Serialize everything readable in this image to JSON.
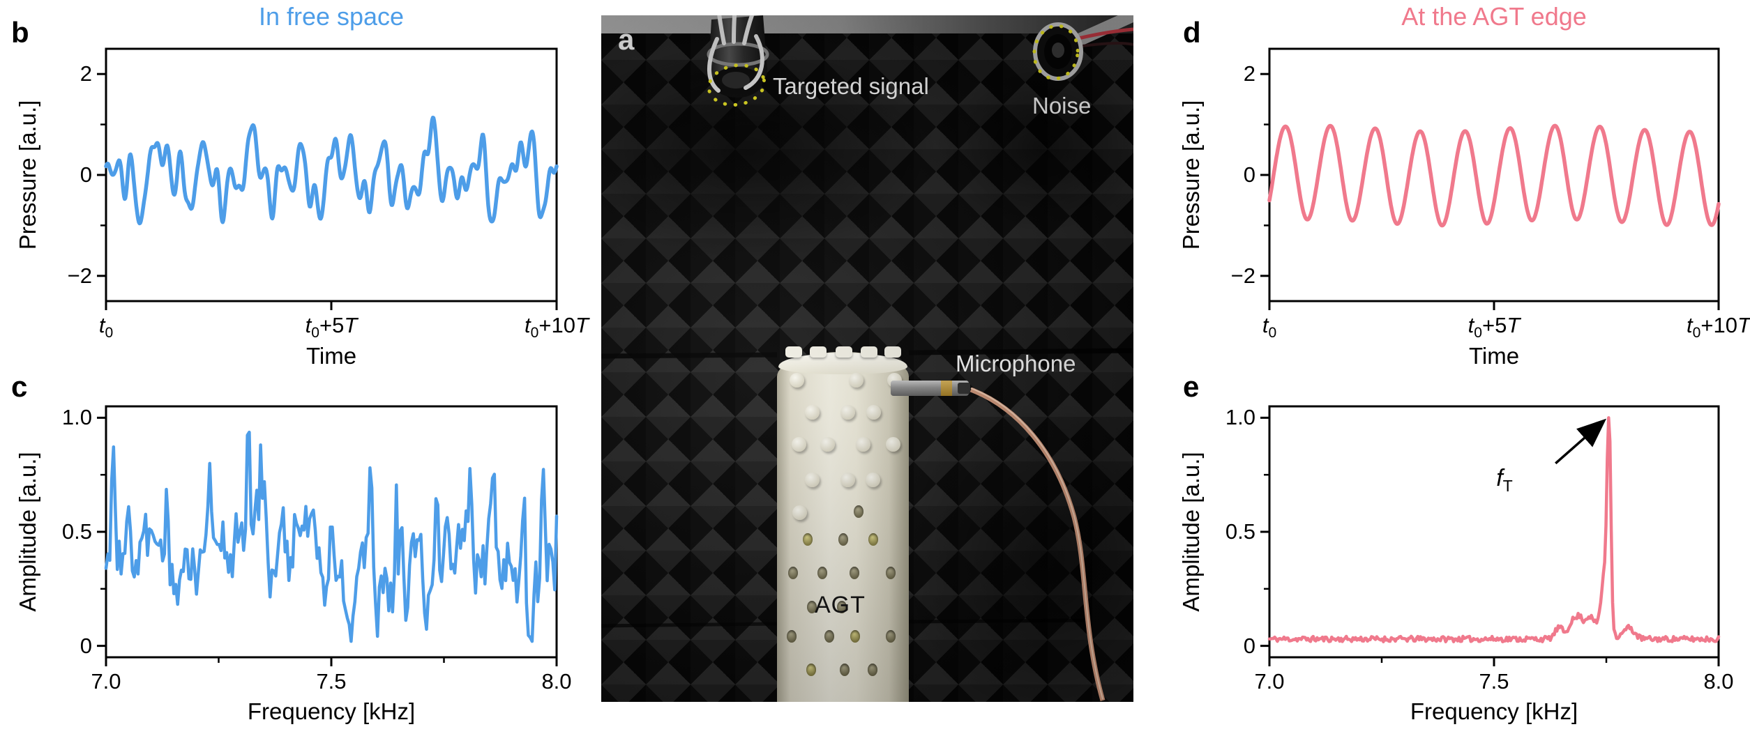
{
  "figure": {
    "background": "#ffffff",
    "accent_blue": "#4D9DE8",
    "accent_pink": "#F0798C"
  },
  "panels": {
    "a": {
      "letter": "a",
      "labels": {
        "targeted_signal": "Targeted signal",
        "noise": "Noise",
        "microphone": "Microphone",
        "agt": "AGT"
      }
    },
    "b": {
      "letter": "b",
      "title": "In free space",
      "title_color": "#4D9DE8",
      "ylabel": "Pressure [a.u.]",
      "xlabel": "Time"
    },
    "c": {
      "letter": "c",
      "ylabel": "Amplitude [a.u.]",
      "xlabel": "Frequency [kHz]"
    },
    "d": {
      "letter": "d",
      "title": "At the AGT edge",
      "title_color": "#F0798C",
      "ylabel": "Pressure [a.u.]",
      "xlabel": "Time"
    },
    "e": {
      "letter": "e",
      "ylabel": "Amplitude [a.u.]",
      "xlabel": "Frequency [kHz]"
    }
  },
  "chart_data": [
    {
      "id": "b",
      "type": "line",
      "panel": "b",
      "title": "In free space",
      "xlabel": "Time",
      "ylabel": "Pressure [a.u.]",
      "color": "#4D9DE8",
      "stroke": 5.5,
      "x_range": [
        0,
        10
      ],
      "ylim": [
        -2.5,
        2.5
      ],
      "xticks": [
        {
          "frac": 0,
          "rich": [
            {
              "t": "t",
              "i": true
            },
            {
              "t": "0",
              "sub": true
            }
          ]
        },
        {
          "frac": 0.5,
          "rich": [
            {
              "t": "t",
              "i": true
            },
            {
              "t": "0",
              "sub": true
            },
            {
              "t": "+5"
            },
            {
              "t": "T",
              "i": true
            }
          ]
        },
        {
          "frac": 1,
          "rich": [
            {
              "t": "t",
              "i": true
            },
            {
              "t": "0",
              "sub": true
            },
            {
              "t": "+10"
            },
            {
              "t": "T",
              "i": true
            }
          ]
        }
      ],
      "yticks": [
        {
          "v": 2,
          "label": "2"
        },
        {
          "v": 0,
          "label": "0"
        },
        {
          "v": -2,
          "label": "−2"
        }
      ],
      "yticks_minor": [
        1,
        -1
      ],
      "model": "harmonic_sum",
      "n": 700,
      "components": [
        {
          "f": 1.0,
          "a": 0.4,
          "p": 0.2
        },
        {
          "f": 1.8,
          "a": 0.3,
          "p": 2.0
        },
        {
          "f": 2.7,
          "a": 0.26,
          "p": 4.1
        },
        {
          "f": 3.7,
          "a": 0.18,
          "p": 1.0
        },
        {
          "f": 0.5,
          "a": 0.16,
          "p": 3.6
        },
        {
          "f": 4.6,
          "a": 0.1,
          "p": 5.2
        },
        {
          "f": 6.1,
          "a": 0.05,
          "p": 0.9
        }
      ]
    },
    {
      "id": "c",
      "type": "line",
      "panel": "c",
      "xlabel": "Frequency [kHz]",
      "ylabel": "Amplitude [a.u.]",
      "color": "#4D9DE8",
      "stroke": 4.5,
      "xlim": [
        7,
        8
      ],
      "ylim": [
        -0.05,
        1.05
      ],
      "xticks": [
        {
          "v": 7.0,
          "label": "7.0"
        },
        {
          "v": 7.5,
          "label": "7.5"
        },
        {
          "v": 8.0,
          "label": "8.0"
        }
      ],
      "xticks_minor": [
        7.25,
        7.75
      ],
      "yticks": [
        {
          "v": 1.0,
          "label": "1.0"
        },
        {
          "v": 0.5,
          "label": "0.5"
        },
        {
          "v": 0,
          "label": "0"
        }
      ],
      "yticks_minor": [
        0.75,
        0.25
      ],
      "model": "noise_spectrum",
      "seed": 7,
      "n": 240,
      "start": 0.55,
      "mean": 0.32,
      "step": 0.42,
      "revert": 0.2,
      "spike_prob": 0.03,
      "peaks": [
        {
          "x": 7.016,
          "y": 0.88
        },
        {
          "x": 7.135,
          "y": 0.64
        },
        {
          "x": 7.23,
          "y": 0.8
        },
        {
          "x": 7.316,
          "y": 1.0
        },
        {
          "x": 7.353,
          "y": 0.62
        },
        {
          "x": 7.42,
          "y": 0.6
        },
        {
          "x": 7.5,
          "y": 0.56
        },
        {
          "x": 7.587,
          "y": 0.8
        },
        {
          "x": 7.655,
          "y": 0.55
        },
        {
          "x": 7.734,
          "y": 0.68
        },
        {
          "x": 7.808,
          "y": 0.78
        },
        {
          "x": 7.86,
          "y": 0.8
        },
        {
          "x": 7.925,
          "y": 0.55
        },
        {
          "x": 7.97,
          "y": 0.78
        }
      ]
    },
    {
      "id": "d",
      "type": "line",
      "panel": "d",
      "title": "At the AGT edge",
      "xlabel": "Time",
      "ylabel": "Pressure [a.u.]",
      "color": "#F0798C",
      "stroke": 5.5,
      "x_range": [
        0,
        10
      ],
      "ylim": [
        -2.5,
        2.5
      ],
      "xticks": [
        {
          "frac": 0,
          "rich": [
            {
              "t": "t",
              "i": true
            },
            {
              "t": "0",
              "sub": true
            }
          ]
        },
        {
          "frac": 0.5,
          "rich": [
            {
              "t": "t",
              "i": true
            },
            {
              "t": "0",
              "sub": true
            },
            {
              "t": "+5"
            },
            {
              "t": "T",
              "i": true
            }
          ]
        },
        {
          "frac": 1,
          "rich": [
            {
              "t": "t",
              "i": true
            },
            {
              "t": "0",
              "sub": true
            },
            {
              "t": "+10"
            },
            {
              "t": "T",
              "i": true
            }
          ]
        }
      ],
      "yticks": [
        {
          "v": 2,
          "label": "2"
        },
        {
          "v": 0,
          "label": "0"
        },
        {
          "v": -2,
          "label": "−2"
        }
      ],
      "yticks_minor": [
        1,
        -1
      ],
      "model": "harmonic_sum",
      "n": 700,
      "components": [
        {
          "f": 1.0,
          "a": 0.93,
          "p": -0.63
        },
        {
          "f": 0.18,
          "a": 0.06,
          "p": 0.4
        },
        {
          "f": 2.0,
          "a": 0.02,
          "p": 1.2
        }
      ]
    },
    {
      "id": "e",
      "type": "line",
      "panel": "e",
      "xlabel": "Frequency [kHz]",
      "ylabel": "Amplitude [a.u.]",
      "color": "#F0798C",
      "stroke": 4.5,
      "xlim": [
        7,
        8
      ],
      "ylim": [
        -0.05,
        1.05
      ],
      "xticks": [
        {
          "v": 7.0,
          "label": "7.0"
        },
        {
          "v": 7.5,
          "label": "7.5"
        },
        {
          "v": 8.0,
          "label": "8.0"
        }
      ],
      "xticks_minor": [
        7.25,
        7.75
      ],
      "yticks": [
        {
          "v": 1.0,
          "label": "1.0"
        },
        {
          "v": 0.5,
          "label": "0.5"
        },
        {
          "v": 0,
          "label": "0"
        }
      ],
      "yticks_minor": [
        0.75,
        0.25
      ],
      "model": "peak_spectrum",
      "seed": 11,
      "n": 340,
      "floor": 0.03,
      "jitter": 0.012,
      "peak_frequency_kHz": 7.76,
      "gaussians": [
        {
          "x": 7.756,
          "y": 0.82,
          "w": 0.004
        },
        {
          "x": 7.748,
          "y": 0.3,
          "w": 0.009
        },
        {
          "x": 7.712,
          "y": 0.1,
          "w": 0.013
        },
        {
          "x": 7.675,
          "y": 0.08,
          "w": 0.009
        },
        {
          "x": 7.645,
          "y": 0.05,
          "w": 0.009
        },
        {
          "x": 7.69,
          "y": 0.06,
          "w": 0.006
        },
        {
          "x": 7.8,
          "y": 0.05,
          "w": 0.012
        }
      ],
      "annotation": {
        "rich": [
          {
            "t": "f",
            "i": true
          },
          {
            "t": "T",
            "sub": true
          }
        ],
        "arrow_from": {
          "x": 7.637,
          "y": 0.8
        },
        "arrow_to": {
          "x": 7.742,
          "y": 0.982
        }
      }
    }
  ]
}
